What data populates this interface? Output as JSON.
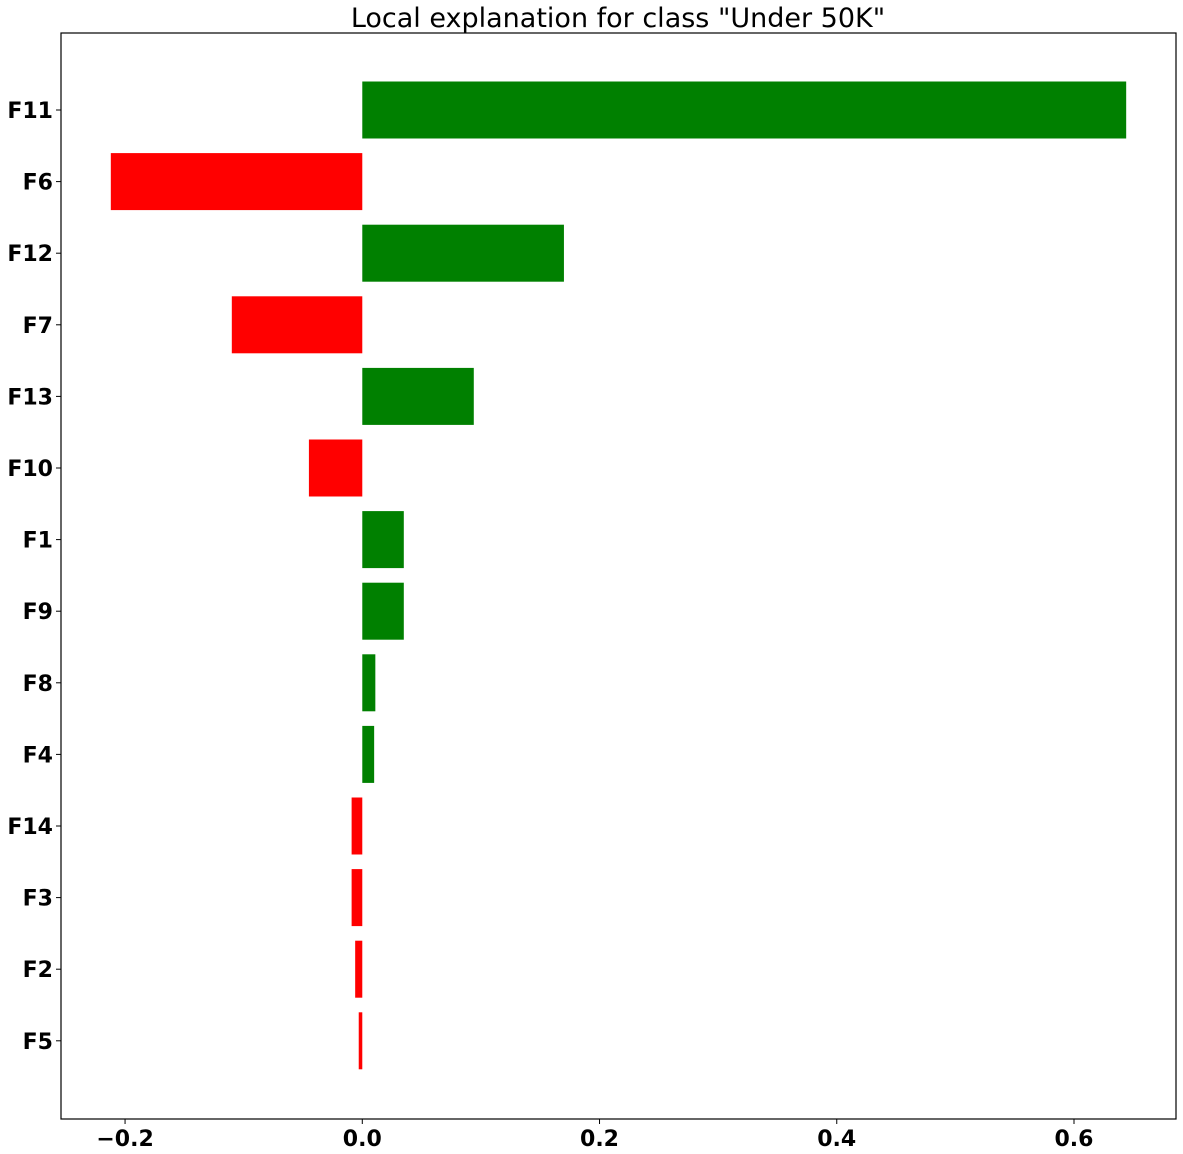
{
  "chart_data": {
    "type": "bar",
    "orientation": "horizontal",
    "title": "Local explanation for class \"Under 50K\"",
    "xlabel": "",
    "ylabel": "",
    "categories": [
      "F11",
      "F6",
      "F12",
      "F7",
      "F13",
      "F10",
      "F1",
      "F9",
      "F8",
      "F4",
      "F14",
      "F3",
      "F2",
      "F5"
    ],
    "values": [
      0.644,
      -0.212,
      0.17,
      -0.11,
      0.094,
      -0.045,
      0.035,
      0.035,
      0.011,
      0.01,
      -0.009,
      -0.009,
      -0.006,
      -0.003
    ],
    "positive_color": "#008000",
    "negative_color": "#ff0000",
    "xlim": [
      -0.254,
      0.686
    ],
    "xticks": [
      -0.2,
      0.0,
      0.2,
      0.4,
      0.6
    ],
    "xtick_labels": [
      "−0.2",
      "0.0",
      "0.2",
      "0.4",
      "0.6"
    ],
    "grid": false,
    "legend": "none"
  }
}
